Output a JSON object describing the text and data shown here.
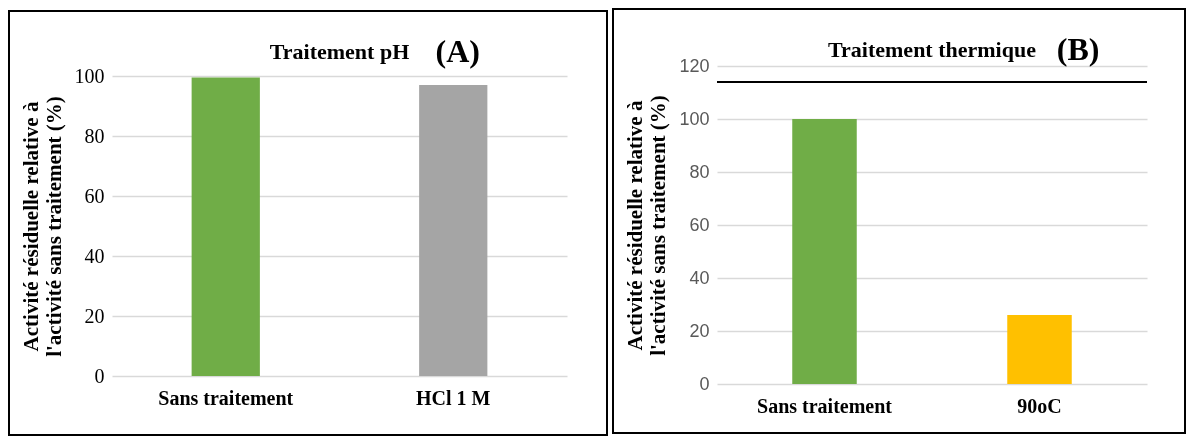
{
  "chart_data": [
    {
      "type": "bar",
      "title": "Traitement pH",
      "annotations": [
        "(A)"
      ],
      "ylabel": "Activité résiduelle relative à l'activité sans traitement (%)",
      "categories": [
        "Sans traitement",
        "HCl 1 M"
      ],
      "values": [
        99.5,
        97
      ],
      "colors": [
        "#70ad47",
        "#a5a5a5"
      ],
      "ylim": [
        0,
        100
      ],
      "yticks": [
        0,
        20,
        40,
        60,
        80,
        100
      ],
      "grid": "y"
    },
    {
      "type": "bar",
      "title": "Traitement thermique",
      "annotations": [
        "(B)"
      ],
      "ylabel": "Activité résiduelle relative à l'activité sans traitement (%)",
      "categories": [
        "Sans traitement",
        "90oC"
      ],
      "values": [
        100,
        26
      ],
      "colors": [
        "#70ad47",
        "#ffc000"
      ],
      "ylim": [
        0,
        120
      ],
      "yticks": [
        0,
        20,
        40,
        60,
        80,
        100,
        120
      ],
      "grid": "y",
      "ref_lines": [
        {
          "axis": "y",
          "value": 114,
          "color": "#000000"
        }
      ]
    }
  ]
}
